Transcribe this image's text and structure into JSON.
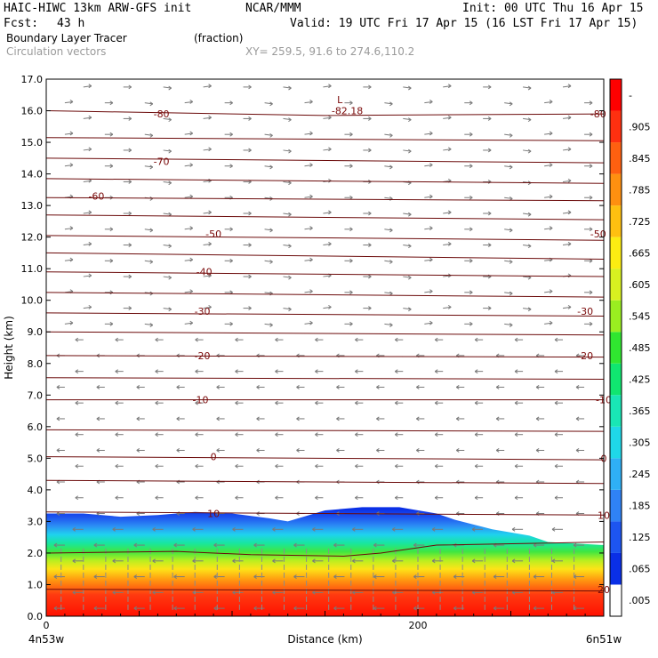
{
  "header": {
    "model": "HAIC-HIWC 13km ARW-GFS init",
    "org": "NCAR/MMM",
    "init": "Init: 00 UTC Thu 16 Apr 15",
    "fcst_label": "Fcst:",
    "fcst_value": "43 h",
    "valid": "Valid: 19 UTC Fri 17 Apr 15 (16 LST Fri 17 Apr 15)",
    "field": "Boundary Layer Tracer",
    "units": "(fraction)",
    "vectors": "Circulation vectors",
    "xy": "XY= 259.5, 91.6 to 274.6,110.2"
  },
  "chart_data": {
    "type": "heatmap",
    "title": "Boundary Layer Tracer",
    "xlabel": "Distance (km)",
    "ylabel": "Height (km)",
    "xlim": [
      0,
      300
    ],
    "ylim": [
      0,
      17
    ],
    "x_ticks": [
      "0",
      "200"
    ],
    "x_end_labels": [
      "4n53w",
      "6n51w"
    ],
    "y_ticks": [
      "0.0",
      "1.0",
      "2.0",
      "3.0",
      "4.0",
      "5.0",
      "6.0",
      "7.0",
      "8.0",
      "9.0",
      "10.0",
      "11.0",
      "12.0",
      "13.0",
      "14.0",
      "15.0",
      "16.0",
      "17.0"
    ],
    "colorbar": {
      "labels": [
        ".005",
        ".065",
        ".125",
        ".185",
        ".245",
        ".305",
        ".365",
        ".425",
        ".485",
        ".545",
        ".605",
        ".665",
        ".725",
        ".785",
        ".845",
        ".905",
        "-"
      ],
      "colors": [
        "#ffffff",
        "#0a2fe6",
        "#1d55f0",
        "#2f82f5",
        "#2fb0f5",
        "#1fd8e8",
        "#19e6b5",
        "#10e670",
        "#30e630",
        "#9aee20",
        "#d8f020",
        "#fcec12",
        "#ffc010",
        "#ff9010",
        "#ff6010",
        "#ff3010",
        "#ff0000"
      ]
    },
    "tracer_top_km": [
      [
        0,
        3.25
      ],
      [
        20,
        3.25
      ],
      [
        40,
        3.15
      ],
      [
        60,
        3.2
      ],
      [
        80,
        3.3
      ],
      [
        100,
        3.25
      ],
      [
        120,
        3.1
      ],
      [
        130,
        3.0
      ],
      [
        150,
        3.35
      ],
      [
        170,
        3.45
      ],
      [
        190,
        3.45
      ],
      [
        210,
        3.25
      ],
      [
        220,
        3.05
      ],
      [
        240,
        2.75
      ],
      [
        260,
        2.55
      ],
      [
        270,
        2.35
      ],
      [
        285,
        2.3
      ],
      [
        300,
        2.25
      ]
    ],
    "contour_labels": [
      {
        "text": "-80",
        "x": 62,
        "y": 15.9
      },
      {
        "text": "-82.18",
        "x": 162,
        "y": 16.0
      },
      {
        "text": "L",
        "x": 158,
        "y": 16.35
      },
      {
        "text": "-80",
        "x": 297,
        "y": 15.9
      },
      {
        "text": "-70",
        "x": 62,
        "y": 14.4
      },
      {
        "text": "-60",
        "x": 27,
        "y": 13.3
      },
      {
        "text": "-50",
        "x": 90,
        "y": 12.1
      },
      {
        "text": "-50",
        "x": 297,
        "y": 12.1
      },
      {
        "text": "-40",
        "x": 85,
        "y": 10.9
      },
      {
        "text": "-30",
        "x": 84,
        "y": 9.65
      },
      {
        "text": "-30",
        "x": 290,
        "y": 9.65
      },
      {
        "text": "-20",
        "x": 84,
        "y": 8.25
      },
      {
        "text": "-20",
        "x": 290,
        "y": 8.25
      },
      {
        "text": "-10",
        "x": 83,
        "y": 6.85
      },
      {
        "text": "-10",
        "x": 300,
        "y": 6.85
      },
      {
        "text": "0",
        "x": 90,
        "y": 5.05
      },
      {
        "text": "0",
        "x": 300,
        "y": 5.0
      },
      {
        "text": "10",
        "x": 90,
        "y": 3.25
      },
      {
        "text": "10",
        "x": 300,
        "y": 3.2
      },
      {
        "text": "20",
        "x": 300,
        "y": 0.85
      }
    ],
    "contour_lines_km": [
      [
        [
          0,
          16.0
        ],
        [
          150,
          15.85
        ],
        [
          300,
          15.9
        ]
      ],
      [
        [
          0,
          15.15
        ],
        [
          300,
          15.05
        ]
      ],
      [
        [
          0,
          14.5
        ],
        [
          300,
          14.35
        ]
      ],
      [
        [
          0,
          13.85
        ],
        [
          300,
          13.7
        ]
      ],
      [
        [
          0,
          13.25
        ],
        [
          300,
          13.15
        ]
      ],
      [
        [
          0,
          12.7
        ],
        [
          300,
          12.55
        ]
      ],
      [
        [
          0,
          12.05
        ],
        [
          300,
          11.9
        ]
      ],
      [
        [
          0,
          11.5
        ],
        [
          300,
          11.3
        ]
      ],
      [
        [
          0,
          10.9
        ],
        [
          300,
          10.75
        ]
      ],
      [
        [
          0,
          10.25
        ],
        [
          300,
          10.1
        ]
      ],
      [
        [
          0,
          9.6
        ],
        [
          300,
          9.5
        ]
      ],
      [
        [
          0,
          9.0
        ],
        [
          300,
          8.9
        ]
      ],
      [
        [
          0,
          8.25
        ],
        [
          300,
          8.2
        ]
      ],
      [
        [
          0,
          7.55
        ],
        [
          300,
          7.5
        ]
      ],
      [
        [
          0,
          6.85
        ],
        [
          300,
          6.85
        ]
      ],
      [
        [
          0,
          5.9
        ],
        [
          300,
          5.85
        ]
      ],
      [
        [
          0,
          5.05
        ],
        [
          300,
          4.95
        ]
      ],
      [
        [
          0,
          4.3
        ],
        [
          300,
          4.2
        ]
      ],
      [
        [
          0,
          3.3
        ],
        [
          300,
          3.2
        ]
      ],
      [
        [
          0,
          2.0
        ],
        [
          70,
          2.05
        ],
        [
          110,
          1.95
        ],
        [
          160,
          1.9
        ],
        [
          180,
          2.0
        ],
        [
          210,
          2.25
        ],
        [
          300,
          2.35
        ]
      ],
      [
        [
          0,
          0.85
        ],
        [
          300,
          0.8
        ]
      ]
    ]
  }
}
